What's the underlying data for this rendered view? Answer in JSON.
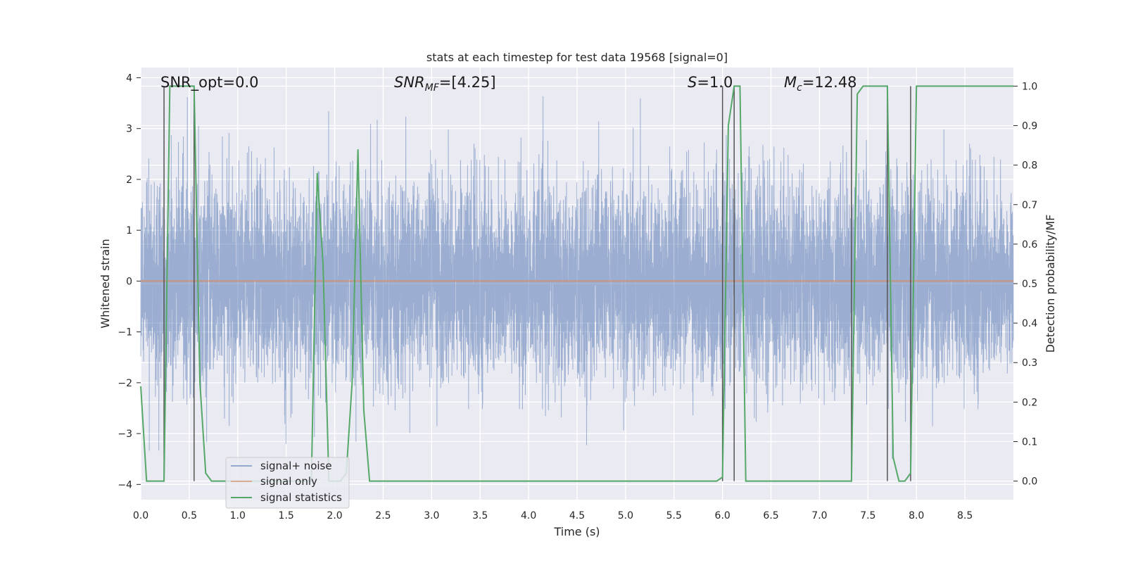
{
  "chart_data": {
    "type": "line",
    "title": "stats at each timestep for test data 19568 [signal=0]",
    "xlabel": "Time (s)",
    "ylabel_left": "Whitened strain",
    "ylabel_right": "Detection probability/MF",
    "xlim": [
      0.0,
      9.0
    ],
    "ylim_left": [
      -4.3,
      4.2
    ],
    "ylim_right": [
      -0.047,
      1.047
    ],
    "x_ticks": [
      0.0,
      0.5,
      1.0,
      1.5,
      2.0,
      2.5,
      3.0,
      3.5,
      4.0,
      4.5,
      5.0,
      5.5,
      6.0,
      6.5,
      7.0,
      7.5,
      8.0,
      8.5
    ],
    "x_tick_labels": [
      "0.0",
      "0.5",
      "1.0",
      "1.5",
      "2.0",
      "2.5",
      "3.0",
      "3.5",
      "4.0",
      "4.5",
      "5.0",
      "5.5",
      "6.0",
      "6.5",
      "7.0",
      "7.5",
      "8.0",
      "8.5"
    ],
    "y_left_ticks": [
      -4,
      -3,
      -2,
      -1,
      0,
      1,
      2,
      3,
      4
    ],
    "y_left_tick_labels": [
      "−4",
      "−3",
      "−2",
      "−1",
      "0",
      "1",
      "2",
      "3",
      "4"
    ],
    "y_right_ticks": [
      0.0,
      0.1,
      0.2,
      0.3,
      0.4,
      0.5,
      0.6,
      0.7,
      0.8,
      0.9,
      1.0
    ],
    "y_right_tick_labels": [
      "0.0",
      "0.1",
      "0.2",
      "0.3",
      "0.4",
      "0.5",
      "0.6",
      "0.7",
      "0.8",
      "0.9",
      "1.0"
    ],
    "annotations": {
      "snr_opt": "SNR_opt=0.0",
      "snr_mf_main": "SNR",
      "snr_mf_sub": "MF",
      "snr_mf_value": "=[4.25]",
      "s_main": "S",
      "s_value": "=1.0",
      "mc_main": "M",
      "mc_sub": "c",
      "mc_value": "=12.48"
    },
    "legend_position": "lower-left",
    "series": [
      {
        "name": "signal+ noise",
        "color": "#4c72b0",
        "axis": "left",
        "kind": "noise",
        "sample_rate": 2048,
        "std": 0.95,
        "range": [
          -3.5,
          3.9
        ]
      },
      {
        "name": "signal only",
        "color": "#dd8452",
        "axis": "left",
        "x": [
          0.0,
          9.0
        ],
        "y": [
          0.0,
          0.0
        ]
      },
      {
        "name": "signal statistics",
        "color": "#55a868",
        "axis": "right",
        "x": [
          0.0,
          0.06,
          0.12,
          0.18,
          0.24,
          0.3,
          0.36,
          0.42,
          0.48,
          0.55,
          0.61,
          0.67,
          0.73,
          0.79,
          0.85,
          0.91,
          0.97,
          1.03,
          1.09,
          1.15,
          1.21,
          1.27,
          1.33,
          1.39,
          1.45,
          1.52,
          1.58,
          1.64,
          1.7,
          1.76,
          1.82,
          1.88,
          1.94,
          2.0,
          2.06,
          2.12,
          2.18,
          2.24,
          2.3,
          2.36,
          2.42,
          2.48,
          2.55,
          2.61,
          5.94,
          6.0,
          6.06,
          6.12,
          6.18,
          6.24,
          6.3,
          7.27,
          7.33,
          7.39,
          7.45,
          7.52,
          7.58,
          7.64,
          7.7,
          7.76,
          7.82,
          7.88,
          7.94,
          8.0,
          8.06,
          8.94,
          9.0
        ],
        "y": [
          0.24,
          0.0,
          0.0,
          0.0,
          0.0,
          1.0,
          1.0,
          1.0,
          1.0,
          1.0,
          0.25,
          0.02,
          0.0,
          0.0,
          0.0,
          0.0,
          0.0,
          0.0,
          0.0,
          0.0,
          0.0,
          0.0,
          0.0,
          0.0,
          0.0,
          0.0,
          0.0,
          0.0,
          0.0,
          0.0,
          0.78,
          0.55,
          0.0,
          0.0,
          0.0,
          0.02,
          0.25,
          0.84,
          0.18,
          0.0,
          0.0,
          0.0,
          0.0,
          0.0,
          0.0,
          0.01,
          0.9,
          1.0,
          1.0,
          0.0,
          0.0,
          0.0,
          0.0,
          0.98,
          1.0,
          1.0,
          1.0,
          1.0,
          1.0,
          0.06,
          0.0,
          0.0,
          0.02,
          1.0,
          1.0,
          1.0,
          1.0
        ]
      }
    ],
    "vertical_markers": [
      0.24,
      0.55,
      6.0,
      6.12,
      7.33,
      7.7,
      7.94
    ]
  }
}
